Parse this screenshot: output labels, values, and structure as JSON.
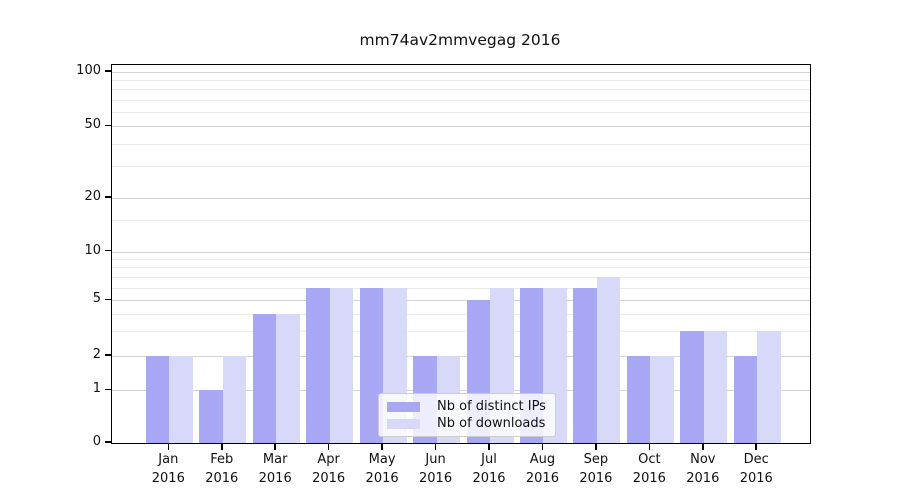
{
  "figure": {
    "title": "mm74av2mmvegag 2016"
  },
  "chart_data": {
    "type": "bar",
    "title": "mm74av2mmvegag 2016",
    "categories": [
      "Jan 2016",
      "Feb 2016",
      "Mar 2016",
      "Apr 2016",
      "May 2016",
      "Jun 2016",
      "Jul 2016",
      "Aug 2016",
      "Sep 2016",
      "Oct 2016",
      "Nov 2016",
      "Dec 2016"
    ],
    "series": [
      {
        "name": "Nb of distinct IPs",
        "color": "#a7a7f3",
        "values": [
          2,
          1,
          4,
          6,
          6,
          2,
          5,
          6,
          6,
          2,
          3,
          2
        ]
      },
      {
        "name": "Nb of downloads",
        "color": "#d8d8f8",
        "values": [
          2,
          2,
          4,
          6,
          6,
          2,
          6,
          6,
          7,
          2,
          3,
          3
        ]
      }
    ],
    "yaxis": {
      "scale": "log-like",
      "ticks": [
        "0",
        "1",
        "2",
        "5",
        "10",
        "20",
        "50",
        "100"
      ],
      "ylim": [
        0,
        100
      ]
    },
    "xlabel": "",
    "ylabel": "",
    "grid": true,
    "legend_position": "bottom-center"
  }
}
